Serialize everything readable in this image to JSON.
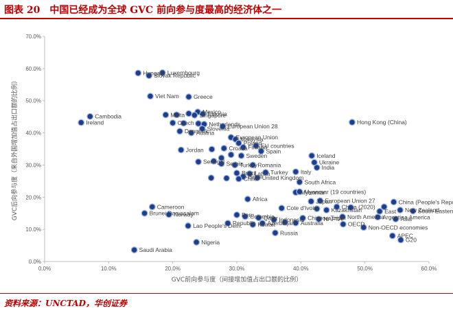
{
  "header": {
    "title": "图表 20　中国已经成为全球 GVC 前向参与度最高的经济体之一"
  },
  "footer": {
    "source": "资料来源：UNCTAD，华创证券"
  },
  "colors": {
    "accent": "#c00000",
    "point_fill": "#1f3e8a",
    "point_stroke": "#9cb4e0"
  },
  "chart_data": {
    "type": "scatter",
    "xlabel": "GVC前向参与度（间接增加值占出口额的比例）",
    "ylabel": "GVC后向参与度（来自外国增加值占出口额的比例）",
    "xlim": [
      0,
      60
    ],
    "ylim": [
      0,
      70
    ],
    "xticks": [
      "0.0%",
      "10.0%",
      "20.0%",
      "30.0%",
      "40.0%",
      "50.0%",
      "60.0%"
    ],
    "yticks": [
      "0.0%",
      "10.0%",
      "20.0%",
      "30.0%",
      "40.0%",
      "50.0%",
      "60.0%",
      "70.0%"
    ],
    "grid": false,
    "points": [
      {
        "x": 14.6,
        "y": 58.6,
        "label": "Hungary"
      },
      {
        "x": 18.4,
        "y": 58.7,
        "label": "Luxembourg"
      },
      {
        "x": 16.3,
        "y": 57.8,
        "label": "Slovak Republic"
      },
      {
        "x": 16.5,
        "y": 51.4,
        "label": "Viet Nam"
      },
      {
        "x": 22.5,
        "y": 51.2,
        "label": "Greece"
      },
      {
        "x": 7.1,
        "y": 45.1,
        "label": "Cambodia"
      },
      {
        "x": 5.7,
        "y": 43.2,
        "label": "Ireland"
      },
      {
        "x": 18.9,
        "y": 45.6,
        "label": "Malta"
      },
      {
        "x": 20.6,
        "y": 45.6,
        "label": ""
      },
      {
        "x": 22.5,
        "y": 46.0,
        "label": ""
      },
      {
        "x": 23.9,
        "y": 46.5,
        "label": "Mexico"
      },
      {
        "x": 24.7,
        "y": 45.9,
        "label": "Estonia"
      },
      {
        "x": 23.4,
        "y": 45.5,
        "label": "Singapore"
      },
      {
        "x": 20.0,
        "y": 43.1,
        "label": "Czech"
      },
      {
        "x": 21.7,
        "y": 43.0,
        "label": ""
      },
      {
        "x": 24.0,
        "y": 42.9,
        "label": ""
      },
      {
        "x": 24.9,
        "y": 42.7,
        "label": "Netherlands"
      },
      {
        "x": 21.1,
        "y": 40.5,
        "label": "Denmark"
      },
      {
        "x": 22.9,
        "y": 40.0,
        "label": "Austria"
      },
      {
        "x": 24.6,
        "y": 41.3,
        "label": "Slovenia"
      },
      {
        "x": 27.8,
        "y": 42.0,
        "label": "European Union 28"
      },
      {
        "x": 29.1,
        "y": 38.6,
        "label": "European Union"
      },
      {
        "x": 29.8,
        "y": 38.0,
        "label": "Malaysia"
      },
      {
        "x": 30.3,
        "y": 36.8,
        "label": "Poland"
      },
      {
        "x": 31.0,
        "y": 35.5,
        "label": "Finland"
      },
      {
        "x": 33.0,
        "y": 36.0,
        "label": "EU countries"
      },
      {
        "x": 33.8,
        "y": 34.3,
        "label": "Spain"
      },
      {
        "x": 21.3,
        "y": 34.7,
        "label": "Jordan"
      },
      {
        "x": 28.0,
        "y": 35.2,
        "label": "Croatia"
      },
      {
        "x": 26.1,
        "y": 34.9,
        "label": ""
      },
      {
        "x": 29.1,
        "y": 33.2,
        "label": ""
      },
      {
        "x": 30.7,
        "y": 32.9,
        "label": "Sweden"
      },
      {
        "x": 27.6,
        "y": 32.2,
        "label": ""
      },
      {
        "x": 26.4,
        "y": 31.2,
        "label": ""
      },
      {
        "x": 27.6,
        "y": 30.4,
        "label": "Serbia"
      },
      {
        "x": 24.0,
        "y": 31.0,
        "label": "Senegal"
      },
      {
        "x": 29.7,
        "y": 30.0,
        "label": "Turkey"
      },
      {
        "x": 32.5,
        "y": 30.0,
        "label": "Romania"
      },
      {
        "x": 41.7,
        "y": 32.9,
        "label": "Iceland"
      },
      {
        "x": 42.1,
        "y": 30.8,
        "label": "Ukraine"
      },
      {
        "x": 42.5,
        "y": 29.2,
        "label": "India"
      },
      {
        "x": 30.0,
        "y": 27.5,
        "label": "Brazil"
      },
      {
        "x": 32.0,
        "y": 27.3,
        "label": "Latvia"
      },
      {
        "x": 34.5,
        "y": 27.7,
        "label": "Turkey"
      },
      {
        "x": 39.2,
        "y": 27.9,
        "label": "Italy"
      },
      {
        "x": 31.0,
        "y": 26.4,
        "label": "Israel"
      },
      {
        "x": 30.3,
        "y": 25.7,
        "label": "Chile"
      },
      {
        "x": 33.2,
        "y": 26.0,
        "label": "United Kingdom"
      },
      {
        "x": 26.0,
        "y": 26.0,
        "label": ""
      },
      {
        "x": 28.4,
        "y": 25.9,
        "label": ""
      },
      {
        "x": 39.8,
        "y": 24.7,
        "label": "South Africa"
      },
      {
        "x": 48.0,
        "y": 43.3,
        "label": "Hong Kong (China)"
      },
      {
        "x": 39.2,
        "y": 21.5,
        "label": "Myanmar"
      },
      {
        "x": 39.8,
        "y": 21.7,
        "label": "Myanmar (19 countries)"
      },
      {
        "x": 31.7,
        "y": 19.4,
        "label": "Africa"
      },
      {
        "x": 41.6,
        "y": 18.7,
        "label": "Japan"
      },
      {
        "x": 43.0,
        "y": 18.9,
        "label": "European Union 27"
      },
      {
        "x": 37.0,
        "y": 16.6,
        "label": "Cote d'Ivoire"
      },
      {
        "x": 42.5,
        "y": 16.4,
        "label": ""
      },
      {
        "x": 44.0,
        "y": 16.0,
        "label": "Kazakhstan"
      },
      {
        "x": 45.6,
        "y": 17.0,
        "label": "China (2020)"
      },
      {
        "x": 47.8,
        "y": 16.8,
        "label": ""
      },
      {
        "x": 53.0,
        "y": 17.0,
        "label": ""
      },
      {
        "x": 54.5,
        "y": 18.5,
        "label": "China (People's Republic of)"
      },
      {
        "x": 55.5,
        "y": 16.0,
        "label": "New Zealand"
      },
      {
        "x": 57.5,
        "y": 15.7,
        "label": "South-Eastern"
      },
      {
        "x": 52.3,
        "y": 15.6,
        "label": "East"
      },
      {
        "x": 46.5,
        "y": 13.9,
        "label": "North America"
      },
      {
        "x": 52.0,
        "y": 13.8,
        "label": "Argentina America"
      },
      {
        "x": 54.8,
        "y": 13.2,
        "label": "Asia"
      },
      {
        "x": 16.8,
        "y": 17.0,
        "label": "Cameroon"
      },
      {
        "x": 15.6,
        "y": 15.0,
        "label": "Brunei Darussalam"
      },
      {
        "x": 19.4,
        "y": 14.6,
        "label": "Norway"
      },
      {
        "x": 22.4,
        "y": 11.1,
        "label": "Lao People's Dem."
      },
      {
        "x": 28.6,
        "y": 11.9,
        "label": "Republic"
      },
      {
        "x": 30.0,
        "y": 14.5,
        "label": "Peru"
      },
      {
        "x": 31.3,
        "y": 14.0,
        "label": "Colombia"
      },
      {
        "x": 32.5,
        "y": 11.5,
        "label": "Kuwait"
      },
      {
        "x": 33.4,
        "y": 13.6,
        "label": "Qatar"
      },
      {
        "x": 34.0,
        "y": 11.9,
        "label": "Azerbaijan"
      },
      {
        "x": 35.8,
        "y": 13.0,
        "label": "Indonesia"
      },
      {
        "x": 37.5,
        "y": 12.2,
        "label": ""
      },
      {
        "x": 39.2,
        "y": 12.0,
        "label": "Australia"
      },
      {
        "x": 40.3,
        "y": 13.5,
        "label": "Chinese Taipei"
      },
      {
        "x": 42.8,
        "y": 13.2,
        "label": "NAFTA"
      },
      {
        "x": 46.6,
        "y": 11.6,
        "label": "OECD"
      },
      {
        "x": 49.8,
        "y": 10.6,
        "label": "Non-OECD economies"
      },
      {
        "x": 54.3,
        "y": 8.0,
        "label": "APEC"
      },
      {
        "x": 55.6,
        "y": 6.7,
        "label": "G20"
      },
      {
        "x": 36.0,
        "y": 8.9,
        "label": "Russia"
      },
      {
        "x": 23.7,
        "y": 6.0,
        "label": "Nigeria"
      },
      {
        "x": 14.0,
        "y": 3.6,
        "label": "Saudi Arabia"
      }
    ]
  }
}
